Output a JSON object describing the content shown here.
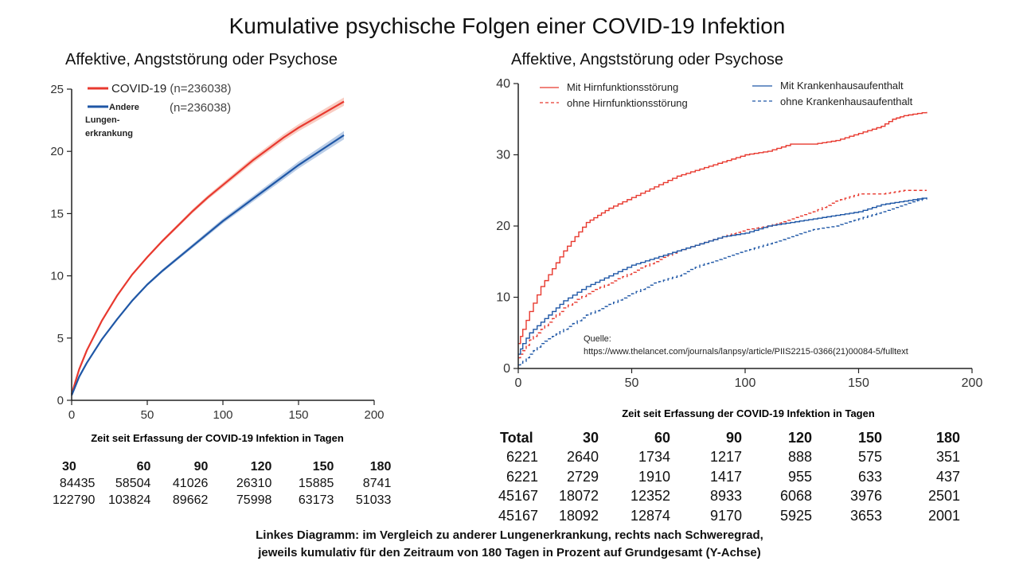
{
  "title": "Kumulative psychische Folgen einer COVID-19 Infektion",
  "left": {
    "subtitle": "Affektive, Angststörung oder Psychose",
    "legend": {
      "covid_name": "COVID-19",
      "covid_n": "(n=236038)",
      "other_name_lines": [
        "Andere",
        "Lungen-",
        "erkrankung"
      ],
      "other_n": "(n=236038)"
    },
    "xlabel": "Zeit seit Erfassung der COVID-19 Infektion in Tagen",
    "risk_table": {
      "headers": [
        "30",
        "60",
        "90",
        "120",
        "150",
        "180"
      ],
      "rows": [
        [
          "84435",
          "58504",
          "41026",
          "26310",
          "15885",
          "8741"
        ],
        [
          "122790",
          "103824",
          "89662",
          "75998",
          "63173",
          "51033"
        ]
      ]
    }
  },
  "right": {
    "subtitle": "Affektive, Angststörung oder Psychose",
    "source_label": "Quelle:",
    "source_url": "https://www.thelancet.com/journals/lanpsy/article/PIIS2215-0366(21)00084-5/fulltext",
    "xlabel": "Zeit seit Erfassung der COVID-19 Infektion in Tagen",
    "risk_table": {
      "headers": [
        "Total",
        "30",
        "60",
        "90",
        "120",
        "150",
        "180"
      ],
      "rows": [
        [
          "6221",
          "2640",
          "1734",
          "1217",
          "888",
          "575",
          "351"
        ],
        [
          "6221",
          "2729",
          "1910",
          "1417",
          "955",
          "633",
          "437"
        ],
        [
          "45167",
          "18072",
          "12352",
          "8933",
          "6068",
          "3976",
          "2501"
        ],
        [
          "45167",
          "18092",
          "12874",
          "9170",
          "5925",
          "3653",
          "2001"
        ]
      ]
    }
  },
  "footnote_lines": [
    "Linkes Diagramm: im Vergleich zu anderer Lungenerkrankung, rechts nach Schweregrad,",
    "jeweils kumulativ für den Zeitraum von 180 Tagen in Prozent auf Grundgesamt (Y-Achse)"
  ],
  "colors": {
    "red": "#e8392f",
    "blue": "#1f57a6",
    "red_band": "#f6b7a8",
    "blue_band": "#9db8dd",
    "axis": "#222222"
  },
  "chart_data": [
    {
      "type": "line",
      "title": "Affektive, Angststörung oder Psychose",
      "xlabel": "Zeit seit Erfassung der COVID-19 Infektion in Tagen",
      "ylabel": "",
      "xlim": [
        0,
        200
      ],
      "ylim": [
        0,
        25
      ],
      "xticks": [
        0,
        50,
        100,
        150,
        200
      ],
      "yticks": [
        0,
        5,
        10,
        15,
        20,
        25
      ],
      "legend_position": "top-left",
      "grid": false,
      "series": [
        {
          "name": "COVID-19",
          "color": "#e8392f",
          "x": [
            0,
            5,
            10,
            20,
            30,
            40,
            50,
            60,
            70,
            80,
            90,
            100,
            110,
            120,
            130,
            140,
            150,
            160,
            170,
            180
          ],
          "y": [
            0.5,
            2.5,
            4.0,
            6.4,
            8.4,
            10.1,
            11.5,
            12.8,
            14.0,
            15.2,
            16.3,
            17.3,
            18.3,
            19.3,
            20.2,
            21.1,
            21.9,
            22.6,
            23.3,
            24.0
          ]
        },
        {
          "name": "Andere Lungen- erkrankung",
          "color": "#1f57a6",
          "x": [
            0,
            5,
            10,
            20,
            30,
            40,
            50,
            60,
            70,
            80,
            90,
            100,
            110,
            120,
            130,
            140,
            150,
            160,
            170,
            180
          ],
          "y": [
            0.4,
            1.9,
            3.0,
            4.9,
            6.5,
            8.0,
            9.3,
            10.4,
            11.4,
            12.4,
            13.4,
            14.4,
            15.3,
            16.2,
            17.1,
            18.0,
            18.9,
            19.7,
            20.5,
            21.3
          ]
        }
      ]
    },
    {
      "type": "line",
      "title": "Affektive, Angststörung oder Psychose",
      "xlabel": "Zeit seit Erfassung der COVID-19 Infektion in Tagen",
      "ylabel": "",
      "xlim": [
        0,
        200
      ],
      "ylim": [
        0,
        40
      ],
      "xticks": [
        0,
        50,
        100,
        150,
        200
      ],
      "yticks": [
        0,
        10,
        20,
        30,
        40
      ],
      "legend_position": "top",
      "grid": false,
      "step": true,
      "series": [
        {
          "name": "Mit Hirnfunktionsstörung",
          "color": "#e8392f",
          "dash": "solid",
          "x": [
            0,
            2,
            5,
            10,
            15,
            20,
            25,
            30,
            35,
            40,
            50,
            60,
            70,
            80,
            90,
            100,
            110,
            120,
            130,
            140,
            150,
            160,
            165,
            170,
            180
          ],
          "y": [
            3.5,
            5.5,
            8.0,
            11.5,
            14.0,
            16.5,
            18.5,
            20.5,
            21.5,
            22.5,
            24.0,
            25.5,
            27.0,
            28.0,
            29.0,
            30.0,
            30.5,
            31.5,
            31.5,
            32.0,
            33.0,
            34.0,
            35.0,
            35.5,
            36.0
          ]
        },
        {
          "name": "ohne Hirnfunktionsstörung",
          "color": "#e8392f",
          "dash": "dashed",
          "x": [
            0,
            2,
            5,
            10,
            15,
            20,
            30,
            40,
            50,
            60,
            70,
            80,
            90,
            100,
            110,
            120,
            130,
            140,
            150,
            160,
            170,
            180
          ],
          "y": [
            1.5,
            2.5,
            4.0,
            5.5,
            7.0,
            8.5,
            10.5,
            12.0,
            13.5,
            15.0,
            16.5,
            17.5,
            18.5,
            19.5,
            20.0,
            21.0,
            22.0,
            23.5,
            24.5,
            24.5,
            25.0,
            25.0
          ]
        },
        {
          "name": "Mit Krankenhausaufenthalt",
          "color": "#1f57a6",
          "dash": "solid",
          "x": [
            0,
            2,
            5,
            10,
            15,
            20,
            30,
            40,
            50,
            60,
            70,
            80,
            90,
            100,
            110,
            120,
            130,
            140,
            150,
            160,
            170,
            180
          ],
          "y": [
            2.0,
            3.5,
            5.0,
            6.5,
            8.0,
            9.5,
            11.5,
            13.0,
            14.5,
            15.5,
            16.5,
            17.5,
            18.5,
            19.0,
            20.0,
            20.5,
            21.0,
            21.5,
            22.0,
            23.0,
            23.5,
            24.0
          ]
        },
        {
          "name": "ohne Krankenhausaufenthalt",
          "color": "#1f57a6",
          "dash": "dashed",
          "x": [
            0,
            2,
            5,
            10,
            15,
            20,
            30,
            40,
            50,
            60,
            70,
            80,
            90,
            100,
            110,
            120,
            130,
            140,
            150,
            160,
            170,
            180
          ],
          "y": [
            0.5,
            1.0,
            2.0,
            3.5,
            4.5,
            5.5,
            7.5,
            9.0,
            10.5,
            12.0,
            13.0,
            14.5,
            15.5,
            16.5,
            17.5,
            18.5,
            19.5,
            20.0,
            21.0,
            22.0,
            23.0,
            24.0
          ]
        }
      ]
    }
  ]
}
